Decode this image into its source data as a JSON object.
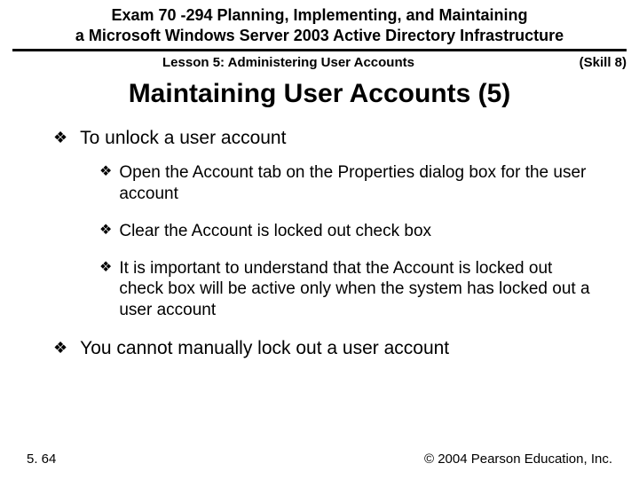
{
  "colors": {
    "background": "#ffffff",
    "text": "#000000",
    "rule": "#000000"
  },
  "typography": {
    "family": "Arial",
    "header_exam_size": 18,
    "lesson_size": 15,
    "title_size": 30,
    "bullet_l1_size": 21,
    "bullet_l2_size": 19,
    "footer_size": 15
  },
  "header": {
    "exam_line1": "Exam 70 -294 Planning, Implementing, and Maintaining",
    "exam_line2": "a Microsoft Windows Server 2003 Active Directory Infrastructure",
    "lesson": "Lesson 5: Administering User Accounts",
    "skill": "(Skill 8)"
  },
  "title": "Maintaining User Accounts (5)",
  "bullets": {
    "marker": "❖",
    "l1_a": "To unlock a user account",
    "l2_a": "Open the Account tab on the Properties dialog box for the user account",
    "l2_b": "Clear the Account is locked out check box",
    "l2_c": "It is important to understand that the Account is locked out check box will be active only when the system has locked out a user account",
    "l1_b": "You cannot manually lock out a user account"
  },
  "footer": {
    "page": "5. 64",
    "copyright": "© 2004 Pearson Education, Inc."
  }
}
